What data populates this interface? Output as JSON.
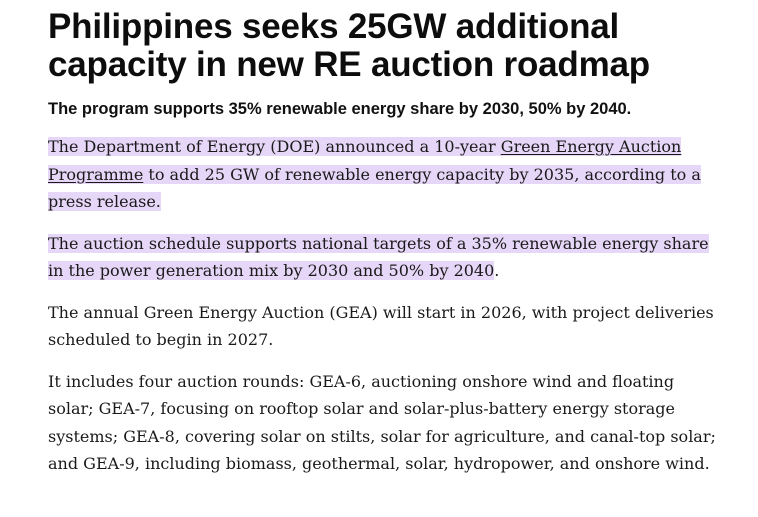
{
  "article": {
    "headline": "Philippines seeks 25GW additional capacity in new RE auction roadmap",
    "subheadline": "The program supports 35% renewable energy share by 2030, 50% by 2040.",
    "paragraph1": {
      "before_link": "The Department of Energy (DOE) announced a 10-year ",
      "link_text": "Green Energy Auction Programme",
      "after_link": " to add 25 GW of renewable energy capacity by 2035, according to a press release."
    },
    "paragraph2": {
      "highlighted": "The auction schedule supports national targets of a 35% renewable energy share in the power generation mix by 2030 and 50% by 2040",
      "tail": "."
    },
    "paragraph3": "The annual Green Energy Auction (GEA) will start in 2026, with project deliveries scheduled to begin in 2027.",
    "paragraph4": "It includes four auction rounds: GEA-6, auctioning onshore wind and floating solar; GEA-7, focusing on rooftop solar and solar-plus-battery energy storage systems; GEA-8, covering solar on stilts, solar for agriculture, and canal-top solar; and GEA-9, including biomass, geothermal, solar, hydropower, and onshore wind."
  },
  "colors": {
    "highlight": "#e6d6f7",
    "text": "#1a1a1a"
  }
}
